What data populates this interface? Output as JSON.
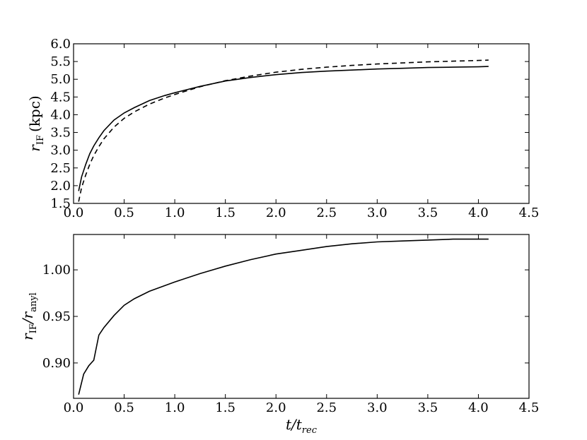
{
  "chart_data": [
    {
      "type": "line",
      "name": "top-panel",
      "ylabel_main": "r",
      "ylabel_sub": "IF",
      "ylabel_unit": "(kpc)",
      "xlim": [
        0.0,
        4.5
      ],
      "ylim": [
        1.5,
        6.0
      ],
      "xticks": [
        "0.0",
        "0.5",
        "1.0",
        "1.5",
        "2.0",
        "2.5",
        "3.0",
        "3.5",
        "4.0",
        "4.5"
      ],
      "yticks": [
        "1.5",
        "2.0",
        "2.5",
        "3.0",
        "3.5",
        "4.0",
        "4.5",
        "5.0",
        "5.5",
        "6.0"
      ],
      "grid": false,
      "series": [
        {
          "style": "solid",
          "x": [
            0.05,
            0.08,
            0.12,
            0.16,
            0.2,
            0.25,
            0.3,
            0.4,
            0.5,
            0.6,
            0.75,
            0.9,
            1.0,
            1.25,
            1.5,
            1.75,
            2.0,
            2.25,
            2.5,
            2.75,
            3.0,
            3.25,
            3.5,
            3.75,
            4.0,
            4.1
          ],
          "y": [
            1.85,
            2.25,
            2.6,
            2.9,
            3.12,
            3.35,
            3.55,
            3.85,
            4.05,
            4.2,
            4.4,
            4.54,
            4.62,
            4.8,
            4.95,
            5.05,
            5.13,
            5.19,
            5.23,
            5.26,
            5.29,
            5.31,
            5.33,
            5.34,
            5.35,
            5.36
          ]
        },
        {
          "style": "dashed",
          "x": [
            0.05,
            0.08,
            0.12,
            0.16,
            0.2,
            0.25,
            0.3,
            0.4,
            0.5,
            0.6,
            0.75,
            0.9,
            1.0,
            1.25,
            1.5,
            1.75,
            2.0,
            2.25,
            2.5,
            2.75,
            3.0,
            3.25,
            3.5,
            3.75,
            4.0,
            4.1
          ],
          "y": [
            1.55,
            1.95,
            2.3,
            2.6,
            2.85,
            3.1,
            3.32,
            3.65,
            3.9,
            4.08,
            4.3,
            4.47,
            4.57,
            4.79,
            4.96,
            5.09,
            5.2,
            5.28,
            5.34,
            5.39,
            5.43,
            5.46,
            5.49,
            5.51,
            5.53,
            5.54
          ]
        }
      ]
    },
    {
      "type": "line",
      "name": "bottom-panel",
      "ylabel_main": "r",
      "ylabel_sub": "IF",
      "ylabel_den": "/r",
      "ylabel_den_sub": "anyl",
      "xlabel_main": "t/t",
      "xlabel_sub": "rec",
      "xlim": [
        0.0,
        4.5
      ],
      "ylim": [
        0.862,
        1.038
      ],
      "xticks": [
        "0.0",
        "0.5",
        "1.0",
        "1.5",
        "2.0",
        "2.5",
        "3.0",
        "3.5",
        "4.0",
        "4.5"
      ],
      "ytick_values": [
        0.9,
        0.95,
        1.0
      ],
      "yticks": [
        "0.90",
        "0.95",
        "1.00"
      ],
      "grid": false,
      "series": [
        {
          "style": "solid",
          "x": [
            0.05,
            0.1,
            0.15,
            0.2,
            0.25,
            0.3,
            0.4,
            0.5,
            0.6,
            0.75,
            1.0,
            1.25,
            1.5,
            1.75,
            2.0,
            2.25,
            2.5,
            2.75,
            3.0,
            3.25,
            3.5,
            3.75,
            4.0,
            4.1
          ],
          "y": [
            0.866,
            0.888,
            0.897,
            0.903,
            0.93,
            0.938,
            0.951,
            0.962,
            0.969,
            0.977,
            0.987,
            0.996,
            1.004,
            1.011,
            1.017,
            1.021,
            1.025,
            1.028,
            1.03,
            1.031,
            1.032,
            1.033,
            1.033,
            1.033
          ]
        }
      ]
    }
  ]
}
